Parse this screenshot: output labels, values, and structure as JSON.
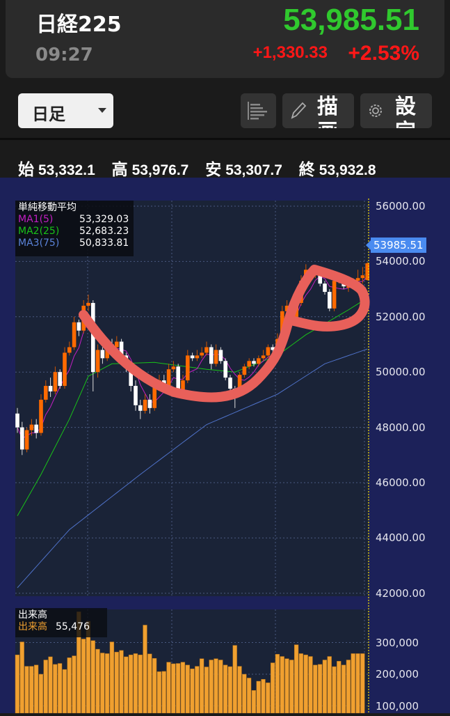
{
  "header": {
    "title": "日経225",
    "time": "09:27",
    "price": "53,985.51",
    "change": "+1,330.33",
    "change_pct": "+2.53%"
  },
  "toolbar": {
    "period": "日足",
    "draw_label": "描画",
    "settings_label": "設定",
    "icons": [
      "list-icon",
      "pencil-icon",
      "gear-icon"
    ]
  },
  "ohlc": {
    "open_label": "始",
    "open": "53,332.1",
    "high_label": "高",
    "high": "53,976.7",
    "low_label": "安",
    "low": "53,307.7",
    "close_label": "終",
    "close": "53,932.8"
  },
  "colors": {
    "up": "#ff6a00",
    "down": "#ffffff",
    "ma1": "#c21fc2",
    "ma2": "#19c219",
    "ma3": "#4f72c9",
    "volume": "#f0a030",
    "annotation": "#e8605a",
    "price_up": "#30c92e",
    "change": "#ff1717"
  },
  "legend": {
    "title": "単純移動平均",
    "items": [
      {
        "label": "MA1(5)",
        "value": "53,329.03"
      },
      {
        "label": "MA2(25)",
        "value": "52,683.23"
      },
      {
        "label": "MA3(75)",
        "value": "50,833.81"
      }
    ]
  },
  "volume_legend": {
    "title": "出来高",
    "label": "出来高",
    "value": "55,476"
  },
  "last_price_tag": "53985.51",
  "chart_data": [
    {
      "type": "candlestick",
      "ylim": [
        42000,
        56000
      ],
      "y_ticks": [
        "56000.00",
        "54000.00",
        "52000.00",
        "50000.00",
        "48000.00",
        "46000.00",
        "44000.00",
        "42000.00"
      ],
      "y_tick_values": [
        56000,
        54000,
        52000,
        50000,
        48000,
        46000,
        44000,
        42000
      ],
      "open": [
        48500,
        48000,
        47200,
        47900,
        48100,
        47800,
        49000,
        49500,
        49300,
        50000,
        49500,
        50700,
        50900,
        51800,
        51500,
        52400,
        52500,
        50000,
        50800,
        50500,
        51000,
        50900,
        51100,
        50600,
        50200,
        49500,
        48800,
        48600,
        49000,
        48700,
        49500,
        49700,
        49500,
        50100,
        50200,
        49200,
        49700,
        50600,
        50500,
        50600,
        50700,
        50900,
        50300,
        50800,
        50400,
        49800,
        49400,
        49200,
        49900,
        50200,
        50400,
        50300,
        50500,
        50600,
        50900,
        50800,
        51200,
        52200,
        52400,
        52000,
        52500,
        53300,
        53700,
        53500,
        53600,
        53200,
        52900,
        52300,
        53300,
        53400,
        53100,
        53100,
        53300,
        53400,
        53332.1
      ],
      "high": [
        48700,
        48200,
        48000,
        48300,
        48300,
        49200,
        49700,
        49800,
        50200,
        50100,
        50900,
        51100,
        52000,
        51900,
        52600,
        52800,
        52600,
        51000,
        50900,
        51200,
        51200,
        51300,
        51200,
        50700,
        50300,
        49700,
        49000,
        49200,
        49200,
        49700,
        49900,
        49900,
        50300,
        50400,
        50300,
        49900,
        50800,
        50700,
        50800,
        50900,
        51100,
        51000,
        51000,
        50900,
        50500,
        49900,
        49500,
        50000,
        50300,
        50500,
        50500,
        50600,
        50800,
        51000,
        51000,
        51400,
        52400,
        52600,
        52500,
        52700,
        53500,
        53900,
        53800,
        53800,
        53700,
        53300,
        53000,
        53400,
        53600,
        53500,
        53200,
        53400,
        53700,
        53800,
        53976.7
      ],
      "low": [
        47800,
        47000,
        47100,
        47700,
        47600,
        47700,
        48900,
        49100,
        49200,
        49400,
        49400,
        50600,
        50800,
        51300,
        51400,
        52200,
        49300,
        49800,
        50300,
        50400,
        50800,
        50700,
        50400,
        50000,
        49300,
        48600,
        48300,
        48500,
        48500,
        48600,
        49400,
        49300,
        49400,
        50000,
        49100,
        49100,
        49600,
        50400,
        50400,
        50500,
        50600,
        50100,
        50200,
        50300,
        49700,
        49200,
        48700,
        49100,
        49800,
        50100,
        50200,
        50200,
        50400,
        50500,
        50700,
        50700,
        51100,
        52100,
        51900,
        51900,
        52400,
        53200,
        53300,
        53400,
        53100,
        52800,
        52200,
        52200,
        53200,
        53000,
        52900,
        53000,
        53200,
        53200,
        53307.7
      ],
      "close": [
        48000,
        47200,
        47900,
        48100,
        47800,
        49000,
        49500,
        49300,
        50000,
        49500,
        50700,
        50900,
        51800,
        51500,
        52400,
        52500,
        50000,
        50800,
        50500,
        51000,
        50900,
        51100,
        50600,
        50200,
        49500,
        48800,
        48600,
        49000,
        48700,
        49500,
        49700,
        49500,
        50100,
        50200,
        49200,
        49700,
        50600,
        50500,
        50600,
        50700,
        50900,
        50300,
        50800,
        50400,
        49800,
        49400,
        49200,
        49900,
        50200,
        50400,
        50300,
        50500,
        50600,
        50900,
        50800,
        51200,
        52200,
        52400,
        52000,
        52500,
        53300,
        53700,
        53500,
        53600,
        53200,
        52900,
        52300,
        53300,
        53400,
        53100,
        53100,
        53300,
        53400,
        53500,
        53932.8
      ],
      "ma2_points": [
        [
          0,
          44800
        ],
        [
          5,
          46300
        ],
        [
          11,
          48300
        ],
        [
          15,
          49850
        ],
        [
          20,
          50300
        ],
        [
          29,
          50350
        ],
        [
          40,
          50100
        ],
        [
          46,
          50000
        ],
        [
          55,
          50600
        ],
        [
          61,
          51350
        ],
        [
          70,
          52250
        ],
        [
          74,
          52683.23
        ]
      ],
      "ma3_points": [
        [
          0,
          42200
        ],
        [
          11,
          44300
        ],
        [
          26,
          46300
        ],
        [
          40,
          48100
        ],
        [
          55,
          49200
        ],
        [
          65,
          50300
        ],
        [
          74,
          50833.81
        ]
      ]
    },
    {
      "type": "bar",
      "title": "出来高",
      "y_ticks": [
        "300,000",
        "200,000",
        "100,000"
      ],
      "y_tick_values": [
        300000,
        200000,
        100000
      ],
      "values": [
        261000,
        302000,
        225000,
        225000,
        229000,
        200000,
        245000,
        255000,
        231000,
        234000,
        215000,
        252000,
        258000,
        397000,
        311000,
        367000,
        306000,
        279000,
        267000,
        265000,
        302000,
        270000,
        275000,
        255000,
        261000,
        265000,
        261000,
        355000,
        264000,
        250000,
        208000,
        209000,
        238000,
        233000,
        234000,
        238000,
        229000,
        217000,
        225000,
        249000,
        223000,
        245000,
        249000,
        245000,
        229000,
        224000,
        291000,
        225000,
        200000,
        188000,
        149000,
        178000,
        184000,
        173000,
        236000,
        263000,
        256000,
        249000,
        245000,
        293000,
        265000,
        261000,
        256000,
        229000,
        231000,
        245000,
        256000,
        224000,
        241000,
        229000,
        245000,
        265000,
        265000,
        265000,
        55476
      ]
    }
  ]
}
